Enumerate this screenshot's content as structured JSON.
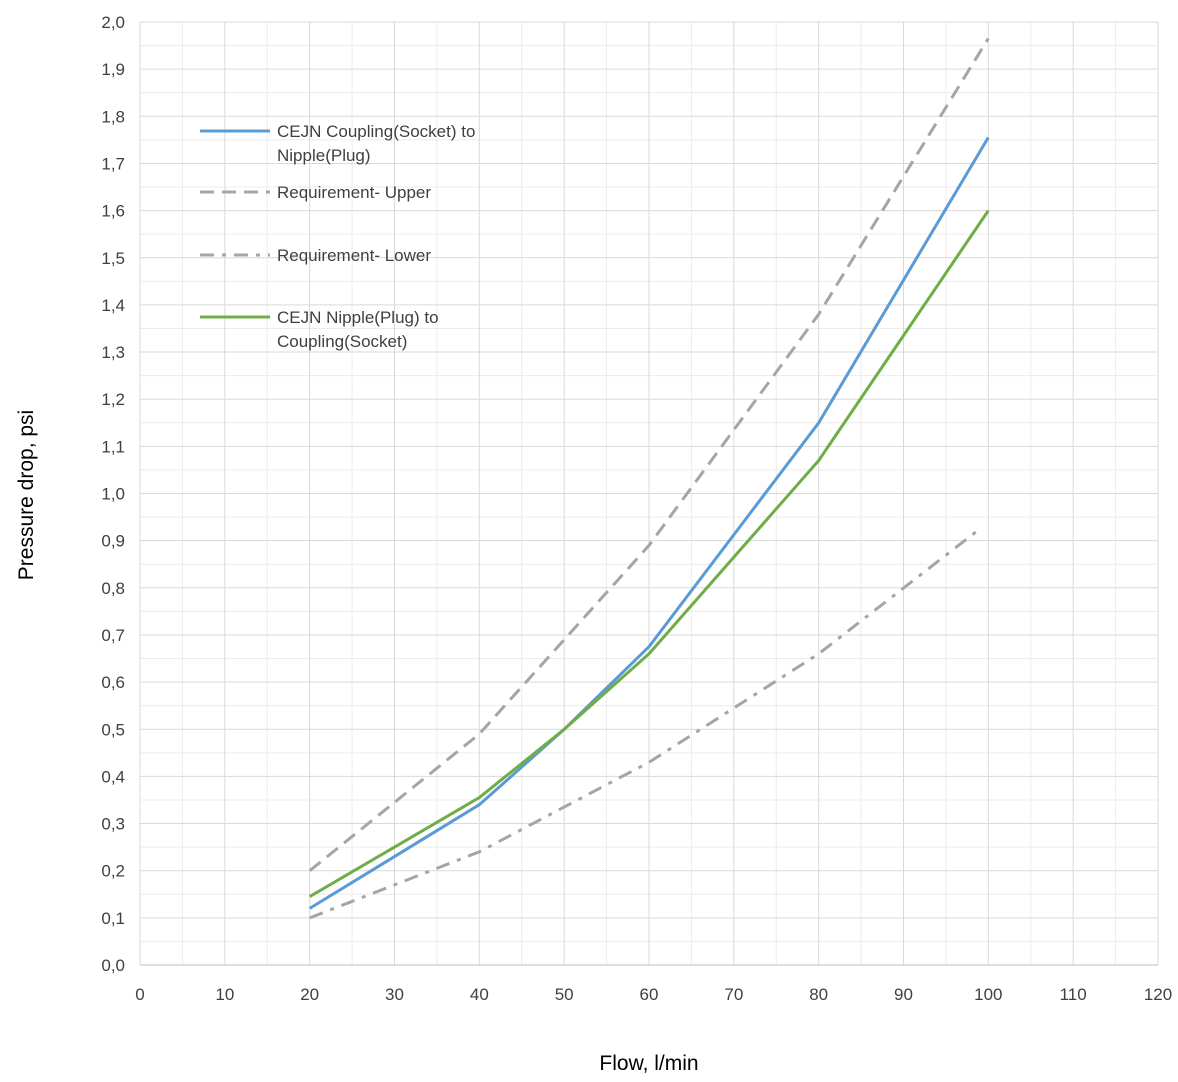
{
  "chart_data": {
    "type": "line",
    "xlabel": "Flow, l/min",
    "ylabel": "Pressure drop, psi",
    "xlim": [
      0,
      120
    ],
    "ylim": [
      0,
      2.0
    ],
    "x_ticks": [
      "0",
      "10",
      "20",
      "30",
      "40",
      "50",
      "60",
      "70",
      "80",
      "90",
      "100",
      "110",
      "120"
    ],
    "y_ticks": [
      "0,0",
      "0,1",
      "0,2",
      "0,3",
      "0,4",
      "0,5",
      "0,6",
      "0,7",
      "0,8",
      "0,9",
      "1,0",
      "1,1",
      "1,2",
      "1,3",
      "1,4",
      "1,5",
      "1,6",
      "1,7",
      "1,8",
      "1,9",
      "2,0"
    ],
    "grid": true,
    "legend_position": "upper-left inside plot",
    "series": [
      {
        "name": "CEJN Coupling(Socket) to Nipple(Plug)",
        "legend_lines": [
          "CEJN Coupling(Socket) to",
          "Nipple(Plug)"
        ],
        "color": "#5B9BD5",
        "style": "solid",
        "x": [
          20,
          40,
          50,
          60,
          80,
          100
        ],
        "y": [
          0.12,
          0.34,
          0.5,
          0.675,
          1.15,
          1.755
        ]
      },
      {
        "name": "Requirement- Upper",
        "legend_lines": [
          "Requirement- Upper"
        ],
        "color": "#A5A5A5",
        "style": "dash",
        "x": [
          20,
          40,
          60,
          80,
          100
        ],
        "y": [
          0.2,
          0.49,
          0.89,
          1.38,
          1.965
        ]
      },
      {
        "name": "Requirement- Lower",
        "legend_lines": [
          "Requirement- Lower"
        ],
        "color": "#A5A5A5",
        "style": "dashdot",
        "x": [
          20,
          40,
          60,
          80,
          99
        ],
        "y": [
          0.1,
          0.24,
          0.43,
          0.66,
          0.925
        ]
      },
      {
        "name": "CEJN Nipple(Plug) to Coupling(Socket)",
        "legend_lines": [
          "CEJN Nipple(Plug) to",
          "Coupling(Socket)"
        ],
        "color": "#70AD47",
        "style": "solid",
        "x": [
          20,
          40,
          50,
          60,
          80,
          100
        ],
        "y": [
          0.145,
          0.355,
          0.5,
          0.66,
          1.07,
          1.6
        ]
      }
    ]
  }
}
